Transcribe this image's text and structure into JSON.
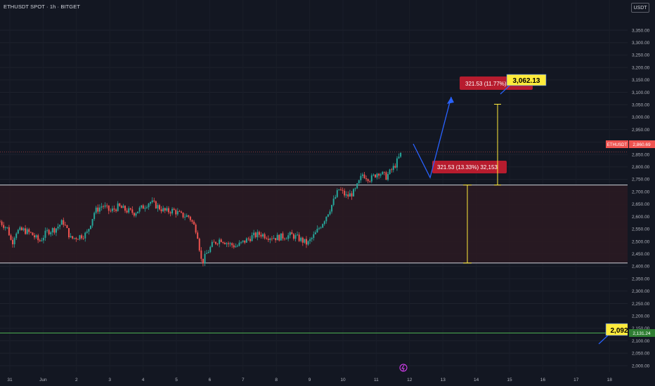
{
  "header": {
    "symbol_title": "ETHUSDT SPOT · 1h · BITGET",
    "currency": "USDT"
  },
  "colors": {
    "background": "#131722",
    "up": "#26a69a",
    "down": "#ef5350",
    "zone_fill": "#2a1a22",
    "support_line": "#4caf50",
    "measure": "#ffeb3b",
    "arrow": "#2962ff"
  },
  "chart_data": {
    "type": "candlestick",
    "title": "ETHUSDT SPOT · 1h · BITGET",
    "ylim": [
      1990,
      3400
    ],
    "y_ticks": [
      "3,350.00",
      "3,300.00",
      "3,250.00",
      "3,200.00",
      "3,150.00",
      "3,100.00",
      "3,050.00",
      "3,000.00",
      "2,950.00",
      "2,900.00",
      "2,850.00",
      "2,800.00",
      "2,750.00",
      "2,700.00",
      "2,650.00",
      "2,600.00",
      "2,550.00",
      "2,500.00",
      "2,450.00",
      "2,400.00",
      "2,350.00",
      "2,300.00",
      "2,250.00",
      "2,200.00",
      "2,150.00",
      "2,100.00",
      "2,050.00",
      "2,000.00"
    ],
    "x_ticks": [
      "31",
      "Jun",
      "2",
      "3",
      "4",
      "5",
      "6",
      "7",
      "8",
      "9",
      "10",
      "11",
      "12",
      "13",
      "14",
      "15",
      "16",
      "17",
      "18"
    ],
    "price_path": [
      [
        0,
        2580
      ],
      [
        1,
        2550
      ],
      [
        1.5,
        2490
      ],
      [
        2,
        2540
      ],
      [
        3,
        2545
      ],
      [
        4,
        2530
      ],
      [
        5,
        2500
      ],
      [
        6,
        2540
      ],
      [
        7,
        2550
      ],
      [
        8,
        2580
      ],
      [
        9,
        2510
      ],
      [
        10,
        2520
      ],
      [
        11,
        2530
      ],
      [
        12,
        2620
      ],
      [
        13,
        2645
      ],
      [
        14,
        2620
      ],
      [
        15,
        2640
      ],
      [
        16,
        2625
      ],
      [
        17,
        2615
      ],
      [
        18,
        2635
      ],
      [
        19,
        2660
      ],
      [
        20,
        2640
      ],
      [
        21,
        2620
      ],
      [
        22,
        2625
      ],
      [
        23,
        2605
      ],
      [
        24,
        2600
      ],
      [
        25,
        2540
      ],
      [
        25.6,
        2410
      ],
      [
        26.2,
        2450
      ],
      [
        27,
        2490
      ],
      [
        28,
        2510
      ],
      [
        29,
        2490
      ],
      [
        30,
        2480
      ],
      [
        31,
        2500
      ],
      [
        32,
        2520
      ],
      [
        33,
        2530
      ],
      [
        34,
        2520
      ],
      [
        35,
        2515
      ],
      [
        36,
        2520
      ],
      [
        37,
        2525
      ],
      [
        38,
        2510
      ],
      [
        39,
        2490
      ],
      [
        40,
        2530
      ],
      [
        41,
        2580
      ],
      [
        42,
        2640
      ],
      [
        43,
        2710
      ],
      [
        44,
        2680
      ],
      [
        45,
        2700
      ],
      [
        46,
        2770
      ],
      [
        47,
        2750
      ],
      [
        48,
        2780
      ],
      [
        49,
        2760
      ],
      [
        50,
        2800
      ],
      [
        51,
        2860
      ]
    ],
    "levels": {
      "range_top": 2727,
      "range_bottom": 2413,
      "support_green": 2131.24,
      "current_price": 2860.69
    },
    "annotations": {
      "measure1_label": "321.53 (13.33%) 32,153",
      "measure2_label": "321.53 (11.77%)",
      "target_label": "3,062.13",
      "support_label": "2,092",
      "current_price_label": "2,860.69",
      "ticker_label": "ETHUSDT",
      "support_price_label": "2,131.24"
    }
  }
}
